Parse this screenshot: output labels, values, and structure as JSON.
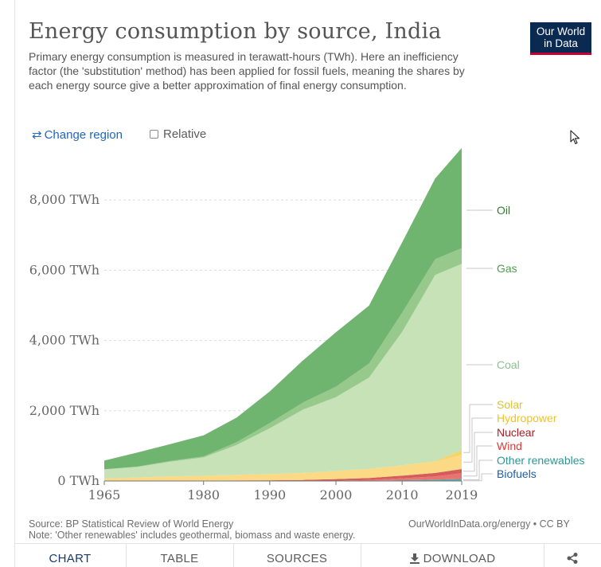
{
  "header": {
    "title": "Energy consumption by source, India",
    "subtitle": "Primary energy consumption is measured in terawatt-hours (TWh). Here an inefficiency factor (the 'substitution' method) has been applied for fossil fuels, meaning the shares by each energy source give a better approximation of final energy consumption.",
    "logo_line1": "Our World",
    "logo_line2": "in Data"
  },
  "controls": {
    "change_region_label": "Change region",
    "relative_label": "Relative"
  },
  "footer": {
    "source": "Source: BP Statistical Review of World Energy",
    "note": "Note: 'Other renewables' includes geothermal, biomass and waste energy.",
    "credit": "OurWorldInData.org/energy • CC BY"
  },
  "tabs": [
    {
      "label": "CHART"
    },
    {
      "label": "TABLE"
    },
    {
      "label": "SOURCES"
    },
    {
      "label": "DOWNLOAD"
    }
  ],
  "colors": {
    "oil": "#6fb46f",
    "gas": "#97c98d",
    "coal": "#c7e2b7",
    "solar": "#f6d568",
    "hydropower": "#fbd985",
    "nuclear": "#d65b5b",
    "wind": "#e9746f",
    "other_renewables": "#5aa8a8",
    "biofuels": "#4f7fb7",
    "oil_label": "#2f7d2f",
    "gas_label": "#4f9b4f",
    "coal_label": "#8cbf8c",
    "solar_label": "#e0c232",
    "hydropower_label": "#efc12f",
    "nuclear_label": "#b3191f",
    "wind_label": "#df3b36",
    "other_renewables_label": "#2f9595",
    "biofuels_label": "#1f5fa6"
  },
  "chart_data": {
    "type": "area",
    "stacked": true,
    "x": [
      1965,
      1970,
      1975,
      1980,
      1985,
      1990,
      1995,
      2000,
      2005,
      2010,
      2015,
      2019
    ],
    "x_ticks": [
      "1965",
      "1980",
      "1990",
      "2000",
      "2010",
      "2019"
    ],
    "y_ticks": [
      "0 TWh",
      "2,000 TWh",
      "4,000 TWh",
      "6,000 TWh",
      "8,000 TWh"
    ],
    "ylim": [
      0,
      9500
    ],
    "grid": true,
    "legend": "right, inline labels",
    "series": [
      {
        "name": "Biofuels",
        "values": [
          0,
          0,
          0,
          0,
          0,
          0,
          0,
          0,
          0,
          2,
          5,
          10
        ]
      },
      {
        "name": "Other renewables",
        "values": [
          0,
          0,
          0,
          0,
          0,
          0,
          2,
          5,
          10,
          20,
          35,
          50
        ]
      },
      {
        "name": "Wind",
        "values": [
          0,
          0,
          0,
          0,
          0,
          0,
          3,
          5,
          20,
          55,
          90,
          160
        ]
      },
      {
        "name": "Nuclear",
        "values": [
          0,
          5,
          7,
          10,
          15,
          20,
          25,
          45,
          55,
          75,
          100,
          120
        ]
      },
      {
        "name": "Hydropower",
        "values": [
          70,
          95,
          125,
          140,
          160,
          180,
          200,
          230,
          260,
          290,
          320,
          400
        ]
      },
      {
        "name": "Solar",
        "values": [
          0,
          0,
          0,
          0,
          0,
          0,
          0,
          0,
          0,
          2,
          15,
          140
        ]
      },
      {
        "name": "Coal",
        "values": [
          260,
          300,
          420,
          520,
          850,
          1300,
          1800,
          2100,
          2600,
          3800,
          5300,
          5300
        ]
      },
      {
        "name": "Gas",
        "values": [
          0,
          10,
          20,
          30,
          80,
          150,
          200,
          300,
          400,
          550,
          450,
          450
        ]
      },
      {
        "name": "Oil",
        "values": [
          250,
          400,
          480,
          600,
          700,
          900,
          1200,
          1550,
          1650,
          2000,
          2300,
          2850
        ]
      }
    ],
    "labels": [
      {
        "key": "oil",
        "text": "Oil"
      },
      {
        "key": "gas",
        "text": "Gas"
      },
      {
        "key": "coal",
        "text": "Coal"
      },
      {
        "key": "solar",
        "text": "Solar"
      },
      {
        "key": "hydropower",
        "text": "Hydropower"
      },
      {
        "key": "nuclear",
        "text": "Nuclear"
      },
      {
        "key": "wind",
        "text": "Wind"
      },
      {
        "key": "other_renewables",
        "text": "Other renewables"
      },
      {
        "key": "biofuels",
        "text": "Biofuels"
      }
    ]
  }
}
